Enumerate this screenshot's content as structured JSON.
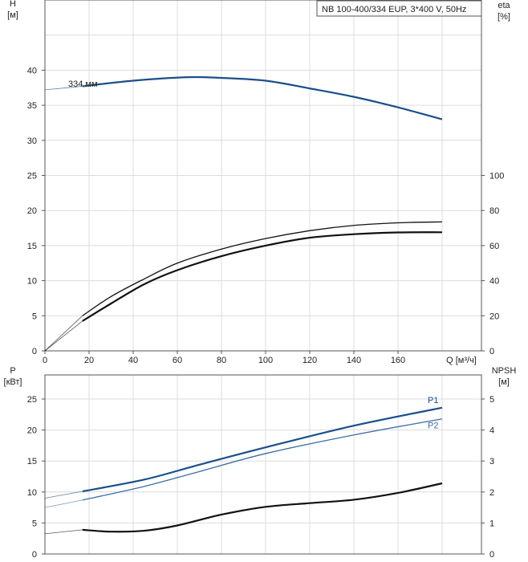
{
  "title_box": "NB 100-400/334 EUP, 3*400 V, 50Hz",
  "chart_data": [
    {
      "type": "line",
      "xlabel": "Q [м³/ч]",
      "ylabel": "H\n[м]",
      "y2label": "eta\n[%]",
      "xlim": [
        0,
        196
      ],
      "ylim": [
        0,
        50
      ],
      "y2lim": [
        0,
        200
      ],
      "grid": true,
      "xticks": [
        0,
        20,
        40,
        60,
        80,
        100,
        120,
        140,
        160
      ],
      "yticks": [
        0,
        5,
        10,
        15,
        20,
        25,
        30,
        35,
        40
      ],
      "y2ticks": [
        0,
        20,
        40,
        60,
        80,
        100
      ],
      "annotations": [
        "334 мм"
      ],
      "series": [
        {
          "axis": "y",
          "color": "#1a4f8a",
          "x": [
            0,
            17,
            40,
            65,
            80,
            100,
            120,
            140,
            160,
            180
          ],
          "y": [
            37.2,
            37.7,
            38.5,
            39.0,
            38.9,
            38.5,
            37.4,
            36.2,
            34.7,
            33.0
          ]
        },
        {
          "axis": "y2",
          "color": "#111111",
          "x": [
            0,
            17,
            30,
            45,
            60,
            80,
            100,
            120,
            140,
            160,
            180
          ],
          "y": [
            0,
            20,
            31,
            41,
            50,
            58,
            64,
            68.5,
            71.5,
            73,
            73.5
          ]
        },
        {
          "axis": "y2",
          "color": "#111111",
          "x": [
            0,
            17,
            30,
            45,
            60,
            80,
            100,
            120,
            140,
            160,
            180
          ],
          "y": [
            0,
            17,
            27,
            38,
            46,
            54,
            60,
            64.5,
            66.5,
            67.5,
            67.6
          ]
        }
      ]
    },
    {
      "type": "line",
      "xlabel": "",
      "ylabel": "P\n[кВт]",
      "y2label": "NPSH\n[м]",
      "xlim": [
        0,
        196
      ],
      "ylim": [
        0,
        28.9
      ],
      "y2lim": [
        0,
        5.78
      ],
      "grid": true,
      "yticks": [
        0,
        5,
        10,
        15,
        20,
        25
      ],
      "y2ticks": [
        0,
        1,
        2,
        3,
        4,
        5
      ],
      "series": [
        {
          "name": "P1",
          "axis": "y",
          "color": "#1a4f8a",
          "x": [
            0,
            17,
            45,
            70,
            100,
            140,
            180
          ],
          "y": [
            9,
            10.1,
            12,
            14.4,
            17.2,
            20.7,
            23.6
          ]
        },
        {
          "name": "P2",
          "axis": "y",
          "color": "#3c6ea5",
          "x": [
            0,
            17,
            45,
            70,
            100,
            140,
            180
          ],
          "y": [
            7.5,
            8.7,
            10.9,
            13.3,
            16.2,
            19.2,
            21.8
          ]
        },
        {
          "axis": "y2",
          "color": "#111111",
          "x": [
            0,
            17,
            30,
            45,
            60,
            80,
            100,
            120,
            140,
            160,
            180
          ],
          "y": [
            0.65,
            0.78,
            0.72,
            0.75,
            0.92,
            1.27,
            1.52,
            1.64,
            1.75,
            1.97,
            2.28
          ]
        }
      ]
    }
  ]
}
